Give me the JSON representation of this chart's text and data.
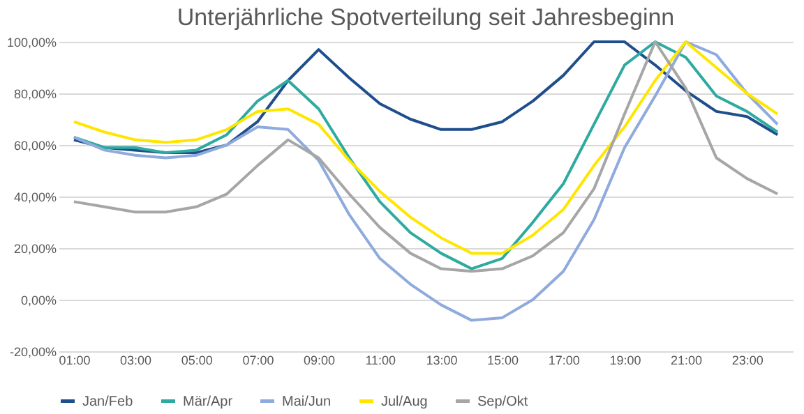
{
  "chart_data": {
    "type": "line",
    "title": "Unterjährliche Spotverteilung seit Jahresbeginn",
    "categories": [
      "01:00",
      null,
      "03:00",
      null,
      "05:00",
      null,
      "07:00",
      null,
      "09:00",
      null,
      "11:00",
      null,
      "13:00",
      null,
      "15:00",
      null,
      "17:00",
      null,
      "19:00",
      null,
      "21:00",
      null,
      "23:00",
      null
    ],
    "series": [
      {
        "name": "Jan/Feb",
        "color": "#1f4e8c",
        "values": [
          62,
          59,
          58,
          57,
          57,
          60,
          69,
          85,
          97,
          86,
          76,
          70,
          66,
          66,
          69,
          77,
          87,
          100,
          100,
          91,
          81,
          73,
          71,
          64
        ]
      },
      {
        "name": "Mär/Apr",
        "color": "#2eaaa0",
        "values": [
          63,
          59,
          59,
          57,
          58,
          64,
          77,
          85,
          74,
          55,
          38,
          26,
          18,
          12,
          16,
          30,
          45,
          68,
          91,
          100,
          94,
          79,
          73,
          65
        ]
      },
      {
        "name": "Mai/Jun",
        "color": "#8faadc",
        "values": [
          63,
          58,
          56,
          55,
          56,
          60,
          67,
          66,
          54,
          33,
          16,
          6,
          -2,
          -8,
          -7,
          0,
          11,
          31,
          59,
          79,
          100,
          95,
          80,
          68
        ]
      },
      {
        "name": "Jul/Aug",
        "color": "#ffe600",
        "values": [
          69,
          65,
          62,
          61,
          62,
          66,
          73,
          74,
          68,
          54,
          42,
          32,
          24,
          18,
          18,
          25,
          35,
          52,
          67,
          85,
          100,
          90,
          80,
          72
        ]
      },
      {
        "name": "Sep/Okt",
        "color": "#a6a6a6",
        "values": [
          38,
          36,
          34,
          34,
          36,
          41,
          52,
          62,
          55,
          41,
          28,
          18,
          12,
          11,
          12,
          17,
          26,
          43,
          72,
          100,
          82,
          55,
          47,
          41
        ]
      }
    ],
    "ylim": [
      -20,
      100
    ],
    "yticks": [
      {
        "value": -20,
        "label": "-20,00%"
      },
      {
        "value": 0,
        "label": "0,00%"
      },
      {
        "value": 20,
        "label": "20,00%"
      },
      {
        "value": 40,
        "label": "40,00%"
      },
      {
        "value": 60,
        "label": "60,00%"
      },
      {
        "value": 80,
        "label": "80,00%"
      },
      {
        "value": 100,
        "label": "100,00%"
      }
    ],
    "grid": "y",
    "legend": "bottom",
    "marker": "none",
    "line_style": "solid"
  }
}
